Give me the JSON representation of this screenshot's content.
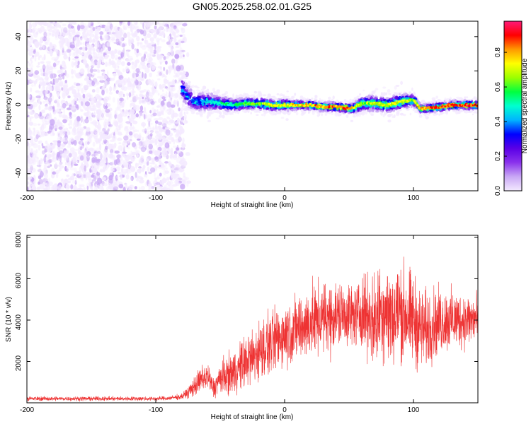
{
  "chart_data": [
    {
      "type": "heatmap",
      "title": "GN05.2025.258.02.01.G25",
      "xlabel": "Height of straight line (km)",
      "ylabel": "Frequency (Hz)",
      "xlim": [
        -200,
        150
      ],
      "ylim": [
        -50,
        49
      ],
      "xticks": [
        "-200",
        "-100",
        "0",
        "100"
      ],
      "yticks": [
        "-40",
        "-20",
        "0",
        "20",
        "40"
      ],
      "colorbar": {
        "label": "Normalized spectral amplitude",
        "range": [
          0,
          0.98
        ],
        "ticks": [
          "0.0",
          "0.2",
          "0.4",
          "0.6",
          "0.8"
        ],
        "colors": [
          "#f4eaff",
          "#c9a8f5",
          "#8a32ec",
          "#5a00e6",
          "#0000ff",
          "#00b4ff",
          "#00ffd0",
          "#00ff40",
          "#9cff00",
          "#ffff00",
          "#ff9a00",
          "#ff0000",
          "#ff1a7a"
        ]
      },
      "noise_region": {
        "x_range": [
          -200,
          -80
        ],
        "freq_range": [
          -50,
          49
        ]
      },
      "signal_ridge": {
        "x": [
          -80,
          -75,
          -70,
          -60,
          -50,
          -40,
          -30,
          -20,
          -10,
          0,
          10,
          20,
          30,
          40,
          50,
          55,
          60,
          70,
          80,
          90,
          100,
          105,
          110,
          120,
          130,
          140,
          150
        ],
        "freq": [
          10,
          5,
          2,
          2,
          1,
          0,
          1,
          1,
          0,
          0,
          0,
          0,
          -1,
          -1,
          -2,
          -1,
          1,
          1,
          0,
          2,
          3,
          -2,
          -2,
          -1,
          0,
          0,
          0
        ],
        "width": [
          8,
          7,
          6,
          6,
          5,
          4,
          4,
          4,
          4,
          4,
          3,
          3,
          3,
          3,
          3,
          4,
          5,
          5,
          5,
          5,
          4,
          3,
          3,
          3,
          3,
          3,
          3
        ],
        "amplitude": [
          0.4,
          0.45,
          0.5,
          0.5,
          0.55,
          0.6,
          0.65,
          0.7,
          0.75,
          0.78,
          0.8,
          0.85,
          0.88,
          0.9,
          0.9,
          0.75,
          0.7,
          0.72,
          0.75,
          0.78,
          0.7,
          0.85,
          0.9,
          0.92,
          0.93,
          0.95,
          0.95
        ]
      }
    },
    {
      "type": "line",
      "xlabel": "Height of straight line (km)",
      "ylabel": "SNR (10 * v/v)",
      "xlim": [
        -200,
        150
      ],
      "ylim": [
        0,
        8100
      ],
      "xticks": [
        "-200",
        "-100",
        "0",
        "100"
      ],
      "yticks": [
        "2000",
        "4000",
        "6000",
        "8000"
      ],
      "color": "#ee3333",
      "series": [
        {
          "name": "SNR",
          "x": [
            -200,
            -180,
            -160,
            -140,
            -120,
            -100,
            -90,
            -80,
            -75,
            -70,
            -65,
            -60,
            -55,
            -50,
            -45,
            -40,
            -35,
            -30,
            -25,
            -20,
            -15,
            -10,
            -5,
            0,
            5,
            10,
            15,
            20,
            25,
            30,
            35,
            40,
            45,
            50,
            55,
            60,
            65,
            70,
            75,
            80,
            85,
            90,
            95,
            100,
            105,
            110,
            115,
            120,
            125,
            130,
            135,
            140,
            145,
            150
          ],
          "mean": [
            200,
            200,
            200,
            200,
            200,
            200,
            220,
            300,
            500,
            800,
            1100,
            1300,
            700,
            1200,
            1300,
            1500,
            1700,
            2000,
            2200,
            2500,
            2700,
            2900,
            3100,
            3300,
            3500,
            3600,
            3700,
            3900,
            4000,
            4100,
            4200,
            4200,
            4250,
            4300,
            4200,
            4400,
            4300,
            3800,
            4600,
            4400,
            4100,
            4500,
            4200,
            4000,
            3600,
            3500,
            3800,
            3900,
            4000,
            4000,
            4000,
            4000,
            4000,
            4100
          ],
          "spread": [
            150,
            150,
            150,
            150,
            150,
            150,
            150,
            200,
            400,
            700,
            900,
            1000,
            700,
            1200,
            1300,
            1500,
            1700,
            1900,
            2000,
            2100,
            2100,
            2200,
            2200,
            2200,
            2300,
            2300,
            2400,
            2500,
            2500,
            2500,
            2500,
            2400,
            2300,
            2200,
            2000,
            2500,
            2800,
            3200,
            3500,
            3600,
            3600,
            3500,
            3400,
            3200,
            2900,
            2700,
            2500,
            2300,
            2200,
            2100,
            2000,
            1900,
            1900,
            1900
          ]
        }
      ]
    }
  ]
}
